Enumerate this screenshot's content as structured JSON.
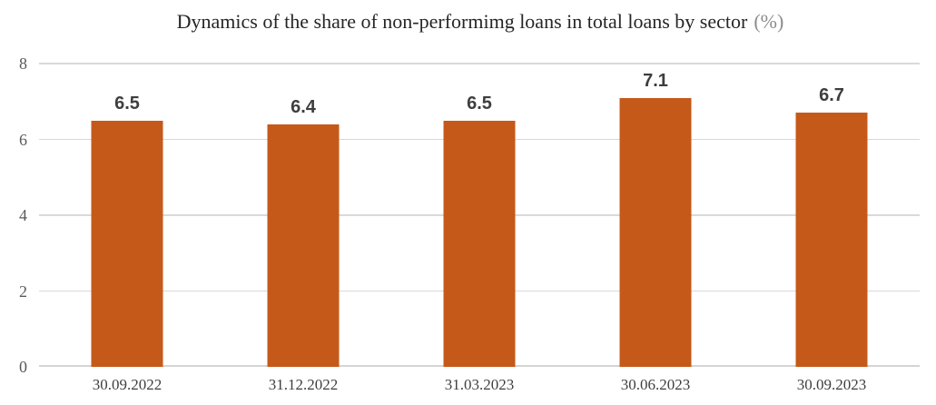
{
  "chart_data": {
    "type": "bar",
    "title": "Dynamics of the share of non-performimg loans in total loans by sector",
    "title_suffix": "(%)",
    "categories": [
      "30.09.2022",
      "31.12.2022",
      "31.03.2023",
      "30.06.2023",
      "30.09.2023"
    ],
    "values": [
      6.5,
      6.4,
      6.5,
      7.1,
      6.7
    ],
    "data_labels": [
      "6.5",
      "6.4",
      "6.5",
      "7.1",
      "6.7"
    ],
    "xlabel": "",
    "ylabel": "",
    "ylim": [
      0,
      8
    ],
    "yticks": [
      0,
      2,
      4,
      6,
      8
    ],
    "grid": true,
    "legend": false,
    "legend_position": "none"
  },
  "colors": {
    "background": "#ffffff",
    "bar": "#c5591a",
    "title_text": "#262626",
    "title_suffix": "#8c8c8c",
    "gridline": "#d9d9d9",
    "baseline": "#d4d4d4",
    "y_tick_label": "#595959",
    "x_tick_label": "#3f3f3f",
    "data_label": "#3e3e3e"
  }
}
